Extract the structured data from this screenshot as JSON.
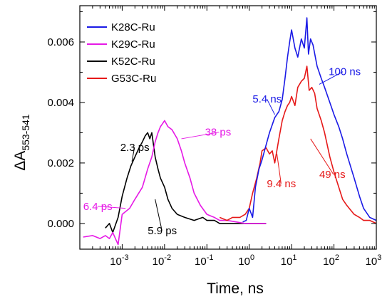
{
  "chart_data": {
    "type": "line",
    "title": "",
    "xlabel": "Time, ns",
    "ylabel_main": "ΔA",
    "ylabel_sub": "553-541",
    "x_scale": "log",
    "xlim": [
      0.0001,
      1000
    ],
    "ylim": [
      -0.00085,
      0.0072
    ],
    "x_ticks": [
      {
        "value": 0.001,
        "base": "10",
        "exp": "-3"
      },
      {
        "value": 0.01,
        "base": "10",
        "exp": "-2"
      },
      {
        "value": 0.1,
        "base": "10",
        "exp": "-1"
      },
      {
        "value": 1,
        "base": "10",
        "exp": "0"
      },
      {
        "value": 10,
        "base": "10",
        "exp": "1"
      },
      {
        "value": 100,
        "base": "10",
        "exp": "2"
      },
      {
        "value": 1000,
        "base": "10",
        "exp": "3"
      }
    ],
    "y_ticks": [
      {
        "value": 0,
        "label": "0.000"
      },
      {
        "value": 0.002,
        "label": "0.002"
      },
      {
        "value": 0.004,
        "label": "0.004"
      },
      {
        "value": 0.006,
        "label": "0.006"
      }
    ],
    "grid": false,
    "legend_position": "top-left",
    "series": [
      {
        "name": "K28C-Ru",
        "color": "#1a1ae6",
        "x": [
          0.7,
          0.85,
          1.0,
          1.2,
          1.4,
          1.7,
          2.0,
          2.5,
          3.0,
          4.0,
          5.0,
          6.0,
          7.0,
          8.0,
          9.0,
          10,
          12,
          14,
          17,
          20,
          23,
          25,
          28,
          32,
          40,
          50,
          60,
          80,
          100,
          130,
          160,
          200,
          300,
          400,
          500,
          700,
          1000
        ],
        "y": [
          5e-05,
          0.0001,
          0.0005,
          0.0002,
          0.0012,
          0.0018,
          0.0021,
          0.0026,
          0.003,
          0.0035,
          0.0037,
          0.0041,
          0.0048,
          0.0055,
          0.006,
          0.0064,
          0.0058,
          0.0055,
          0.0061,
          0.0058,
          0.0068,
          0.0056,
          0.0061,
          0.0059,
          0.0052,
          0.0048,
          0.0045,
          0.004,
          0.0036,
          0.0032,
          0.0028,
          0.0023,
          0.0015,
          0.0009,
          0.0005,
          0.0002,
          0.0001
        ]
      },
      {
        "name": "K29C-Ru",
        "color": "#e619e6",
        "x": [
          0.00012,
          0.0002,
          0.0003,
          0.0004,
          0.0005,
          0.0006,
          0.0008,
          0.001,
          0.0015,
          0.002,
          0.003,
          0.004,
          0.005,
          0.006,
          0.007,
          0.008,
          0.009,
          0.01,
          0.012,
          0.015,
          0.02,
          0.025,
          0.03,
          0.04,
          0.05,
          0.07,
          0.1,
          0.15,
          0.2,
          0.3,
          0.5,
          0.8,
          1.0,
          1.5,
          2.0,
          2.5
        ],
        "y": [
          -0.00045,
          -0.0004,
          -0.0005,
          -0.0004,
          -0.0005,
          -0.0003,
          -0.0007,
          0.0003,
          0.0005,
          0.0008,
          0.0012,
          0.0018,
          0.0022,
          0.0027,
          0.003,
          0.0032,
          0.0033,
          0.0034,
          0.0032,
          0.0031,
          0.0028,
          0.0024,
          0.002,
          0.0015,
          0.001,
          0.0006,
          0.0003,
          0.0002,
          0.0001,
          0.0001,
          5e-05,
          0.0,
          0.0,
          0.0,
          0.0,
          0.0
        ]
      },
      {
        "name": "K52C-Ru",
        "color": "#000000",
        "x": [
          0.0004,
          0.0005,
          0.0006,
          0.0008,
          0.001,
          0.0013,
          0.0016,
          0.002,
          0.0025,
          0.003,
          0.0035,
          0.004,
          0.0045,
          0.005,
          0.006,
          0.007,
          0.008,
          0.01,
          0.012,
          0.015,
          0.02,
          0.03,
          0.05,
          0.08,
          0.1,
          0.15,
          0.2,
          0.3,
          0.5,
          0.8,
          1.0,
          1.3,
          1.6,
          2.0,
          2.5
        ],
        "y": [
          -0.00015,
          0.0,
          -0.0003,
          0.0002,
          0.0009,
          0.0015,
          0.0019,
          0.0022,
          0.0025,
          0.0027,
          0.0029,
          0.003,
          0.0028,
          0.003,
          0.0022,
          0.0018,
          0.0015,
          0.0012,
          0.0008,
          0.0005,
          0.0003,
          0.0002,
          0.0001,
          0.0002,
          0.0001,
          0.0001,
          0.0,
          0.0,
          0.0,
          0.0,
          0.0,
          0.0,
          0.0,
          0.0,
          0.0
        ]
      },
      {
        "name": "G53C-Ru",
        "color": "#e61919",
        "x": [
          0.2,
          0.3,
          0.4,
          0.6,
          0.8,
          1.0,
          1.2,
          1.5,
          1.8,
          2.0,
          2.5,
          3.0,
          3.5,
          4.0,
          5.0,
          6.0,
          7.0,
          8.0,
          9.0,
          10,
          12,
          14,
          17,
          20,
          23,
          26,
          30,
          35,
          40,
          50,
          60,
          80,
          100,
          130,
          160,
          200,
          300,
          400,
          500,
          700,
          1000
        ],
        "y": [
          0.0002,
          0.0001,
          0.0002,
          0.0002,
          0.0003,
          0.0005,
          0.001,
          0.0015,
          0.002,
          0.0024,
          0.0025,
          0.0023,
          0.0024,
          0.002,
          0.0028,
          0.0034,
          0.0037,
          0.0039,
          0.004,
          0.0042,
          0.0039,
          0.0045,
          0.0047,
          0.0048,
          0.0052,
          0.0044,
          0.0045,
          0.0043,
          0.0038,
          0.0034,
          0.003,
          0.0022,
          0.0017,
          0.0012,
          0.0008,
          0.0006,
          0.0003,
          0.0002,
          0.0001,
          0.0001,
          0.0
        ]
      }
    ],
    "annotations": [
      {
        "text": "2.3 ps",
        "color": "#000000",
        "x": 0.0009,
        "y": 0.0024,
        "ax": 0.0017,
        "ay": 0.00205
      },
      {
        "text": "6.4 ps",
        "color": "#e619e6",
        "x": 0.00012,
        "y": 0.00045,
        "ax": 0.0012,
        "ay": 0.0005
      },
      {
        "text": "5.9 ps",
        "color": "#000000",
        "x": 0.004,
        "y": -0.00035,
        "ax": 0.006,
        "ay": 0.0008
      },
      {
        "text": "38 ps",
        "color": "#e619e6",
        "x": 0.09,
        "y": 0.0029,
        "ax": 0.025,
        "ay": 0.0028
      },
      {
        "text": "5.4 ns",
        "color": "#1a1ae6",
        "x": 1.2,
        "y": 0.004,
        "ax": 4.0,
        "ay": 0.0036
      },
      {
        "text": "9.4 ns",
        "color": "#e61919",
        "x": 2.6,
        "y": 0.0012,
        "ax": 4.5,
        "ay": 0.0023
      },
      {
        "text": "49 ns",
        "color": "#e61919",
        "x": 45,
        "y": 0.0015,
        "ax": 28,
        "ay": 0.0028
      },
      {
        "text": "100 ns",
        "color": "#1a1ae6",
        "x": 75,
        "y": 0.0049,
        "ax": 45,
        "ay": 0.0046
      }
    ]
  }
}
